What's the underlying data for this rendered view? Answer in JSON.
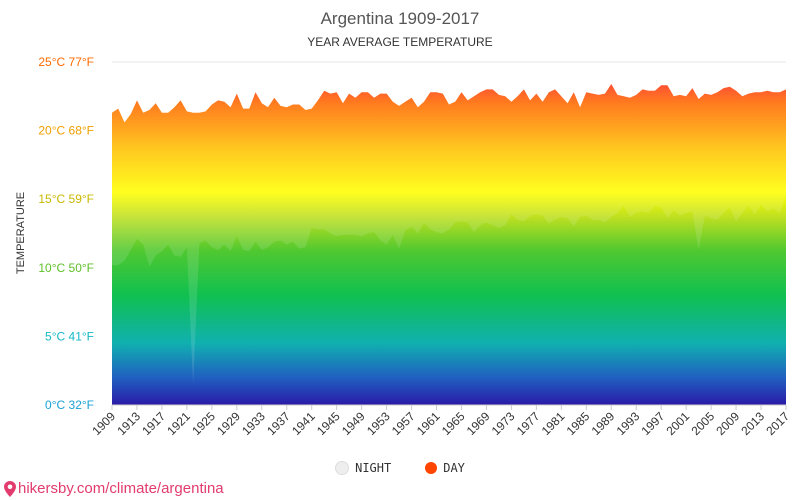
{
  "title": "Argentina 1909-2017",
  "subtitle": "YEAR AVERAGE TEMPERATURE",
  "footer_text": "hikersby.com/climate/argentina",
  "colors": {
    "title": "#555555",
    "night_marker": "#eeeeee",
    "day_marker": "#ff4500",
    "footer": "#e23b6e"
  },
  "legend": {
    "night_label": "NIGHT",
    "day_label": "DAY"
  },
  "chart_data": {
    "type": "area",
    "title": "Argentina 1909-2017",
    "subtitle": "YEAR AVERAGE TEMPERATURE",
    "ylabel": "TEMPERATURE",
    "xlabel": "",
    "ylim": [
      0,
      25
    ],
    "xlim": [
      1909,
      2017
    ],
    "y_ticks": [
      {
        "value": 0,
        "label": "0°C 32°F",
        "color": "#1aa1d6"
      },
      {
        "value": 5,
        "label": "5°C 41°F",
        "color": "#15b8c8"
      },
      {
        "value": 10,
        "label": "10°C 50°F",
        "color": "#5fbf2a"
      },
      {
        "value": 15,
        "label": "15°C 59°F",
        "color": "#c9b800"
      },
      {
        "value": 20,
        "label": "20°C 68°F",
        "color": "#f0a000"
      },
      {
        "value": 25,
        "label": "25°C 77°F",
        "color": "#ff6a00"
      }
    ],
    "x_ticks": [
      1909,
      1913,
      1917,
      1921,
      1925,
      1929,
      1933,
      1937,
      1941,
      1945,
      1949,
      1953,
      1957,
      1961,
      1965,
      1969,
      1973,
      1977,
      1981,
      1985,
      1989,
      1993,
      1997,
      2001,
      2005,
      2009,
      2013,
      2017
    ],
    "grid": true,
    "series": [
      {
        "name": "DAY",
        "x": [
          1909,
          1910,
          1911,
          1912,
          1913,
          1914,
          1915,
          1916,
          1917,
          1918,
          1919,
          1920,
          1921,
          1922,
          1923,
          1924,
          1925,
          1926,
          1927,
          1928,
          1929,
          1930,
          1931,
          1932,
          1933,
          1934,
          1935,
          1936,
          1937,
          1938,
          1939,
          1940,
          1941,
          1942,
          1943,
          1944,
          1945,
          1946,
          1947,
          1948,
          1949,
          1950,
          1951,
          1952,
          1953,
          1954,
          1955,
          1956,
          1957,
          1958,
          1959,
          1960,
          1961,
          1962,
          1963,
          1964,
          1965,
          1966,
          1967,
          1968,
          1969,
          1970,
          1971,
          1972,
          1973,
          1974,
          1975,
          1976,
          1977,
          1978,
          1979,
          1980,
          1981,
          1982,
          1983,
          1984,
          1985,
          1986,
          1987,
          1988,
          1989,
          1990,
          1991,
          1992,
          1993,
          1994,
          1995,
          1996,
          1997,
          1998,
          1999,
          2000,
          2001,
          2002,
          2003,
          2004,
          2005,
          2006,
          2007,
          2008,
          2009,
          2010,
          2011,
          2012,
          2013,
          2014,
          2015,
          2016,
          2017
        ],
        "values": [
          21.3,
          21.6,
          20.6,
          21.2,
          22.2,
          21.3,
          21.5,
          22.0,
          21.3,
          21.3,
          21.7,
          22.2,
          21.4,
          21.3,
          21.3,
          21.4,
          21.9,
          22.2,
          22.1,
          21.7,
          22.7,
          21.6,
          21.6,
          22.8,
          22.0,
          21.7,
          22.4,
          21.8,
          21.7,
          21.9,
          21.9,
          21.5,
          21.6,
          22.2,
          22.9,
          22.7,
          22.8,
          22.0,
          22.7,
          22.4,
          22.8,
          22.8,
          22.4,
          22.7,
          22.7,
          22.1,
          21.8,
          22.1,
          22.4,
          21.7,
          22.1,
          22.8,
          22.8,
          22.7,
          21.9,
          22.1,
          22.8,
          22.2,
          22.5,
          22.8,
          23.0,
          23.0,
          22.6,
          22.5,
          22.1,
          22.5,
          23.0,
          22.2,
          22.7,
          22.1,
          22.8,
          23.0,
          22.5,
          22.0,
          22.8,
          21.7,
          22.8,
          22.7,
          22.6,
          22.7,
          23.4,
          22.6,
          22.5,
          22.4,
          22.6,
          23.0,
          22.9,
          22.9,
          23.3,
          23.3,
          22.5,
          22.6,
          22.5,
          23.1,
          22.3,
          22.7,
          22.6,
          22.8,
          23.1,
          23.2,
          22.9,
          22.5,
          22.7,
          22.8,
          22.8,
          22.9,
          22.8,
          22.8,
          23.0
        ]
      },
      {
        "name": "NIGHT",
        "x": [
          1909,
          1910,
          1911,
          1912,
          1913,
          1914,
          1915,
          1916,
          1917,
          1918,
          1919,
          1920,
          1921,
          1922,
          1923,
          1924,
          1925,
          1926,
          1927,
          1928,
          1929,
          1930,
          1931,
          1932,
          1933,
          1934,
          1935,
          1936,
          1937,
          1938,
          1939,
          1940,
          1941,
          1942,
          1943,
          1944,
          1945,
          1946,
          1947,
          1948,
          1949,
          1950,
          1951,
          1952,
          1953,
          1954,
          1955,
          1956,
          1957,
          1958,
          1959,
          1960,
          1961,
          1962,
          1963,
          1964,
          1965,
          1966,
          1967,
          1968,
          1969,
          1970,
          1971,
          1972,
          1973,
          1974,
          1975,
          1976,
          1977,
          1978,
          1979,
          1980,
          1981,
          1982,
          1983,
          1984,
          1985,
          1986,
          1987,
          1988,
          1989,
          1990,
          1991,
          1992,
          1993,
          1994,
          1995,
          1996,
          1997,
          1998,
          1999,
          2000,
          2001,
          2002,
          2003,
          2004,
          2005,
          2006,
          2007,
          2008,
          2009,
          2010,
          2011,
          2012,
          2013,
          2014,
          2015,
          2016,
          2017
        ],
        "values": [
          10.2,
          10.2,
          10.5,
          11.3,
          12.1,
          11.7,
          10.1,
          10.9,
          11.2,
          11.7,
          10.9,
          10.8,
          11.5,
          1.5,
          11.8,
          12.0,
          11.5,
          11.3,
          11.7,
          11.2,
          12.3,
          11.3,
          11.2,
          11.9,
          11.3,
          11.5,
          11.9,
          12.0,
          11.7,
          11.9,
          11.4,
          11.5,
          12.9,
          12.8,
          12.8,
          12.5,
          12.3,
          12.4,
          12.4,
          12.4,
          12.3,
          12.5,
          12.6,
          12.0,
          11.7,
          12.4,
          11.4,
          12.7,
          13.0,
          12.5,
          13.3,
          12.8,
          12.6,
          12.5,
          12.8,
          13.3,
          13.4,
          13.3,
          12.6,
          13.1,
          13.3,
          13.1,
          12.9,
          13.1,
          13.9,
          13.5,
          13.4,
          13.8,
          13.9,
          13.8,
          13.2,
          13.5,
          13.7,
          13.6,
          13.0,
          13.7,
          13.8,
          13.5,
          13.5,
          13.3,
          13.7,
          14.0,
          14.5,
          13.7,
          14.0,
          14.1,
          14.0,
          14.5,
          14.4,
          13.6,
          14.2,
          13.8,
          14.0,
          14.1,
          11.3,
          13.8,
          13.6,
          13.5,
          14.0,
          14.4,
          13.4,
          14.0,
          14.5,
          13.9,
          14.6,
          14.1,
          14.3,
          14.0,
          15.2
        ]
      }
    ]
  }
}
